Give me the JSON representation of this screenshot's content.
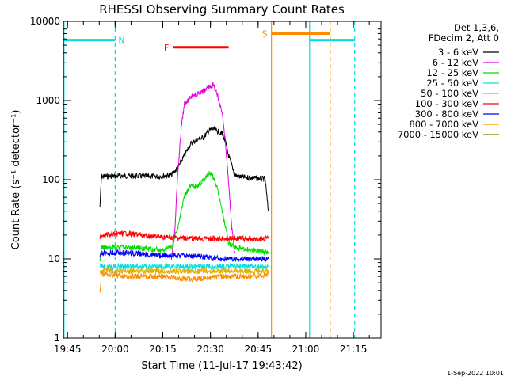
{
  "chart_data": {
    "type": "line",
    "title": "RHESSI Observing Summary Count Rates",
    "xlabel": "Start Time (11-Jul-17 19:43:42)",
    "ylabel": "Count Rate (s⁻¹ detector⁻¹)",
    "x_unit": "minutes since 19:43:42",
    "xlim": [
      0,
      100
    ],
    "ylim": [
      1,
      10000
    ],
    "yscale": "log",
    "x_ticks": [
      {
        "value": 1.3,
        "label": "19:45"
      },
      {
        "value": 16.3,
        "label": "20:00"
      },
      {
        "value": 31.3,
        "label": "20:15"
      },
      {
        "value": 46.3,
        "label": "20:30"
      },
      {
        "value": 61.3,
        "label": "20:45"
      },
      {
        "value": 76.3,
        "label": "21:00"
      },
      {
        "value": 91.3,
        "label": "21:15"
      }
    ],
    "y_ticks": [
      {
        "value": 1,
        "label": "1"
      },
      {
        "value": 10,
        "label": "10"
      },
      {
        "value": 100,
        "label": "100"
      },
      {
        "value": 1000,
        "label": "1000"
      },
      {
        "value": 10000,
        "label": "10000"
      }
    ],
    "legend": {
      "position": "right",
      "header": [
        "Det 1,3,6,",
        "FDecim 2, Att 0"
      ]
    },
    "series": [
      {
        "name": "3 - 6 keV",
        "color": "#000000",
        "x": [
          11.5,
          12.0,
          20,
          30,
          34,
          36,
          38,
          40,
          42,
          44,
          46,
          47,
          48,
          50,
          51,
          52,
          54,
          56,
          60,
          63.5,
          64.5
        ],
        "y": [
          45,
          110,
          112,
          110,
          115,
          140,
          200,
          280,
          320,
          340,
          420,
          440,
          420,
          380,
          300,
          200,
          115,
          108,
          105,
          102,
          40
        ]
      },
      {
        "name": "6 - 12 keV",
        "color": "#e000e0",
        "x": [
          34,
          35,
          36,
          37,
          38,
          40,
          42,
          44,
          46,
          47,
          48,
          49,
          50,
          51,
          52,
          53,
          54
        ],
        "y": [
          10,
          20,
          120,
          400,
          900,
          1100,
          1200,
          1300,
          1500,
          1600,
          1350,
          1000,
          700,
          300,
          90,
          25,
          12
        ]
      },
      {
        "name": "12 - 25 keV",
        "color": "#00dd00",
        "x": [
          11.5,
          12.0,
          20,
          30,
          34,
          36,
          38,
          40,
          42,
          44,
          46,
          47,
          48,
          50,
          51,
          52,
          54,
          60,
          64.5
        ],
        "y": [
          10,
          14,
          14,
          13,
          14,
          25,
          60,
          85,
          80,
          100,
          120,
          110,
          90,
          40,
          25,
          16,
          14,
          13,
          12
        ]
      },
      {
        "name": "25 - 50 keV",
        "color": "#00e0e0",
        "x": [
          11.5,
          12.0,
          64.5
        ],
        "y": [
          8,
          8,
          8
        ]
      },
      {
        "name": "50 - 100 keV",
        "color": "#e0b000",
        "x": [
          11.5,
          12.0,
          64.5
        ],
        "y": [
          7,
          7,
          7
        ]
      },
      {
        "name": "100 - 300 keV",
        "color": "#ff0000",
        "x": [
          11.5,
          12.0,
          20,
          30,
          40,
          50,
          60,
          64.5
        ],
        "y": [
          18,
          20,
          21,
          19,
          18,
          18,
          18,
          18
        ]
      },
      {
        "name": "300 - 800 keV",
        "color": "#0000ff",
        "x": [
          11.5,
          12.0,
          20,
          30,
          40,
          50,
          60,
          64.5
        ],
        "y": [
          11,
          12,
          12,
          11,
          11,
          10,
          10,
          10
        ]
      },
      {
        "name": "800 - 7000 keV",
        "color": "#ff8c00",
        "x": [
          11.5,
          12.0,
          20,
          30,
          40,
          50,
          60,
          64.5
        ],
        "y": [
          3.5,
          6.5,
          6,
          6,
          5.5,
          6,
          6,
          6.5
        ]
      },
      {
        "name": "7000 - 15000 keV",
        "color": "#808000",
        "x": [],
        "y": []
      }
    ],
    "eclipse_segments": [
      {
        "label": "N",
        "color": "#00e0e0",
        "x": [
          0,
          16.3
        ],
        "level": 5800
      },
      {
        "label": "",
        "color": "#00e0e0",
        "x": [
          77.5,
          91.7
        ],
        "level": 5800
      }
    ],
    "flare_bar": {
      "label": "F",
      "color": "#ff0000",
      "x": [
        34.5,
        52
      ],
      "level": 4700
    },
    "saa_bar": {
      "label": "S",
      "color": "#ff8c00",
      "x": [
        65.5,
        84
      ],
      "level": 7000
    },
    "vlines": [
      {
        "x": 0.2,
        "color": "#00e0e0",
        "style": "solid"
      },
      {
        "x": 16.3,
        "color": "#00e0e0",
        "style": "dashed"
      },
      {
        "x": 65.5,
        "color": "#ff8c00",
        "style": "solid"
      },
      {
        "x": 77.5,
        "color": "#00e0e0",
        "style": "solid"
      },
      {
        "x": 84,
        "color": "#ff8c00",
        "style": "dashed"
      },
      {
        "x": 91.7,
        "color": "#00e0e0",
        "style": "dashed"
      }
    ]
  },
  "footer": {
    "timestamp": "1-Sep-2022 10:01"
  }
}
